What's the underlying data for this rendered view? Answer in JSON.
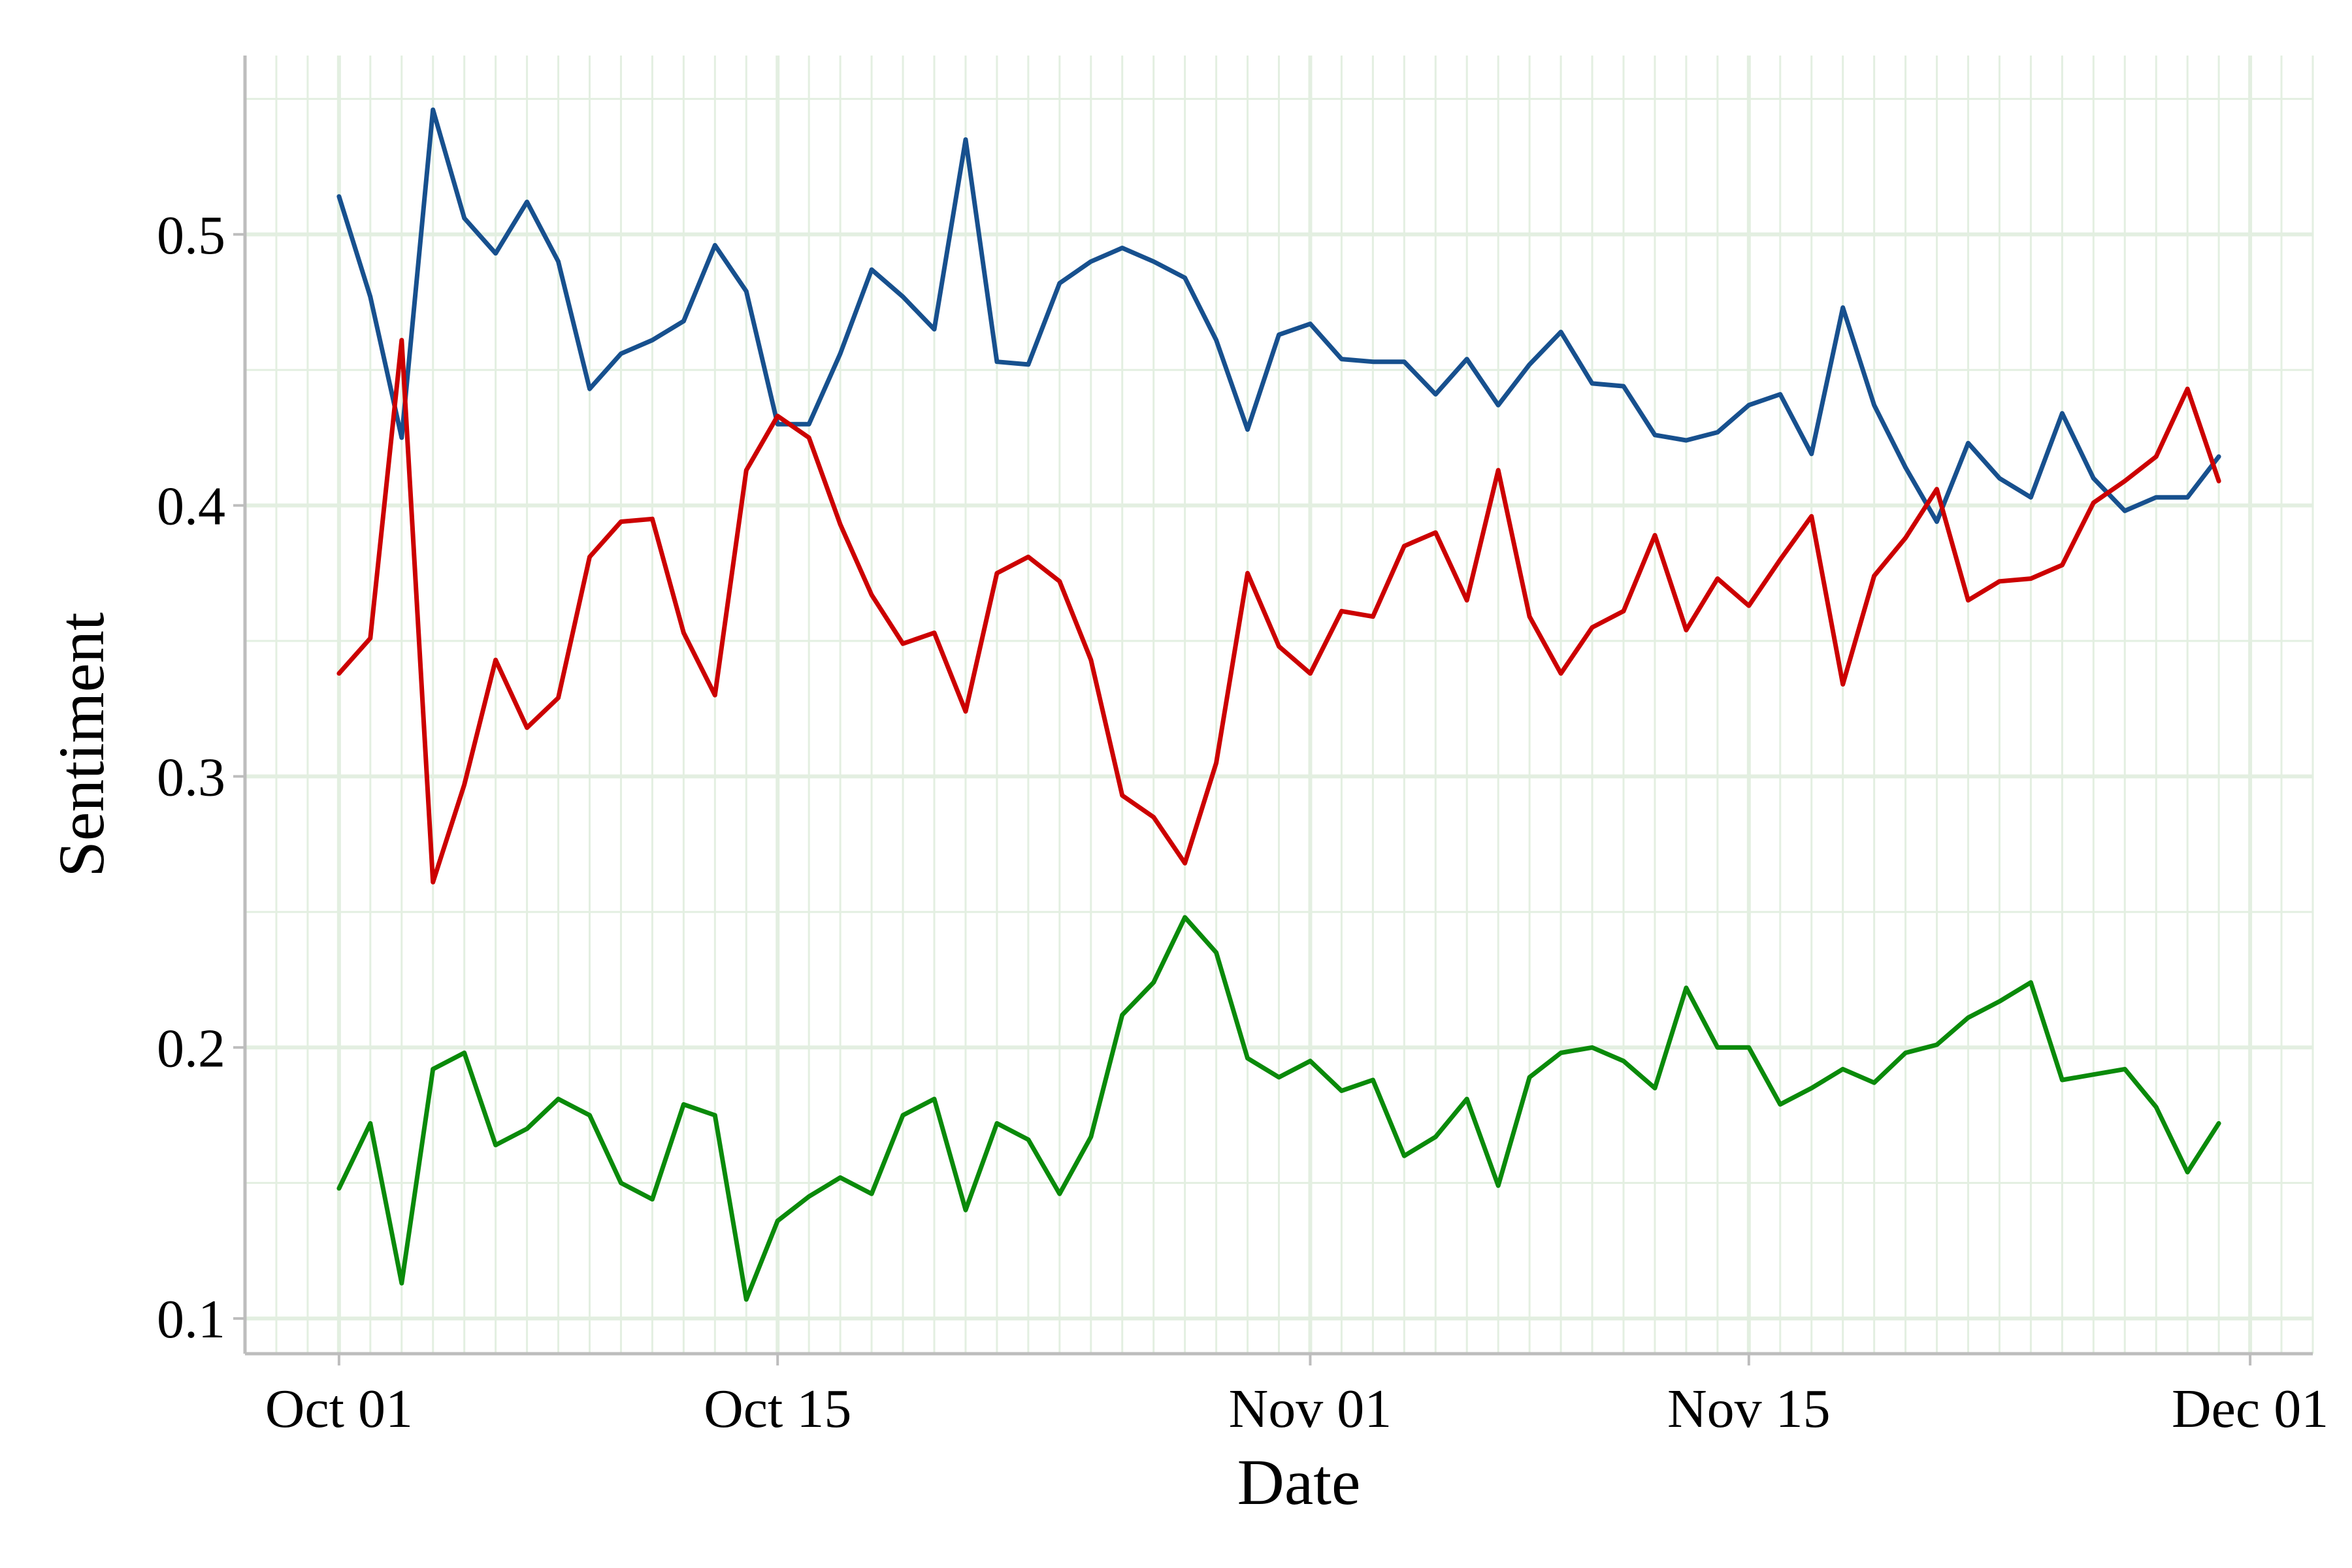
{
  "chart_data": {
    "type": "line",
    "title": "",
    "xlabel": "Date",
    "ylabel": "Sentiment",
    "x_start": "2023-10-01",
    "x_ticks": [
      {
        "label": "Oct 01",
        "date": "2023-10-01"
      },
      {
        "label": "Oct 15",
        "date": "2023-10-15"
      },
      {
        "label": "Nov 01",
        "date": "2023-11-01"
      },
      {
        "label": "Nov 15",
        "date": "2023-11-15"
      },
      {
        "label": "Dec 01",
        "date": "2023-12-01"
      }
    ],
    "y_ticks": [
      {
        "label": "0.1",
        "value": 0.1
      },
      {
        "label": "0.2",
        "value": 0.2
      },
      {
        "label": "0.3",
        "value": 0.3
      },
      {
        "label": "0.4",
        "value": 0.4
      },
      {
        "label": "0.5",
        "value": 0.5
      }
    ],
    "xlim": [
      "2023-09-28",
      "2023-12-03"
    ],
    "ylim": [
      0.087,
      0.566
    ],
    "grid": true,
    "legend": "none",
    "colors": {
      "grid": "#e3efe1",
      "axis": "#bdbdbd",
      "series": [
        "#17508e",
        "#cc0000",
        "#0a8a0a"
      ]
    },
    "series": [
      {
        "values": [
          0.514,
          0.477,
          0.425,
          0.546,
          0.506,
          0.493,
          0.512,
          0.49,
          0.443,
          0.456,
          0.461,
          0.468,
          0.496,
          0.479,
          0.43,
          0.43,
          0.456,
          0.487,
          0.477,
          0.465,
          0.535,
          0.453,
          0.452,
          0.482,
          0.49,
          0.495,
          0.49,
          0.484,
          0.461,
          0.428,
          0.463,
          0.467,
          0.454,
          0.453,
          0.453,
          0.441,
          0.454,
          0.437,
          0.452,
          0.464,
          0.445,
          0.444,
          0.426,
          0.424,
          0.427,
          0.437,
          0.441,
          0.419,
          0.473,
          0.437,
          0.414,
          0.394,
          0.423,
          0.41,
          0.403,
          0.434,
          0.41,
          0.398,
          0.403,
          0.403,
          0.418
        ]
      },
      {
        "values": [
          0.338,
          0.351,
          0.461,
          0.261,
          0.297,
          0.343,
          0.318,
          0.329,
          0.381,
          0.394,
          0.395,
          0.353,
          0.33,
          0.413,
          0.433,
          0.425,
          0.393,
          0.367,
          0.349,
          0.353,
          0.324,
          0.375,
          0.381,
          0.372,
          0.343,
          0.293,
          0.285,
          0.268,
          0.305,
          0.375,
          0.348,
          0.338,
          0.361,
          0.359,
          0.385,
          0.39,
          0.365,
          0.413,
          0.359,
          0.338,
          0.355,
          0.361,
          0.389,
          0.354,
          0.373,
          0.363,
          0.38,
          0.396,
          0.334,
          0.374,
          0.388,
          0.406,
          0.365,
          0.372,
          0.373,
          0.378,
          0.401,
          0.409,
          0.418,
          0.443,
          0.409
        ]
      },
      {
        "values": [
          0.148,
          0.172,
          0.113,
          0.192,
          0.198,
          0.164,
          0.17,
          0.181,
          0.175,
          0.15,
          0.144,
          0.179,
          0.175,
          0.107,
          0.136,
          0.145,
          0.152,
          0.146,
          0.175,
          0.181,
          0.14,
          0.172,
          0.166,
          0.146,
          0.167,
          0.212,
          0.224,
          0.248,
          0.235,
          0.196,
          0.189,
          0.195,
          0.184,
          0.188,
          0.16,
          0.167,
          0.181,
          0.149,
          0.189,
          0.198,
          0.2,
          0.195,
          0.185,
          0.222,
          0.2,
          0.2,
          0.179,
          0.185,
          0.192,
          0.187,
          0.198,
          0.201,
          0.211,
          0.217,
          0.224,
          0.188,
          0.19,
          0.192,
          0.178,
          0.154,
          0.172
        ]
      }
    ]
  }
}
